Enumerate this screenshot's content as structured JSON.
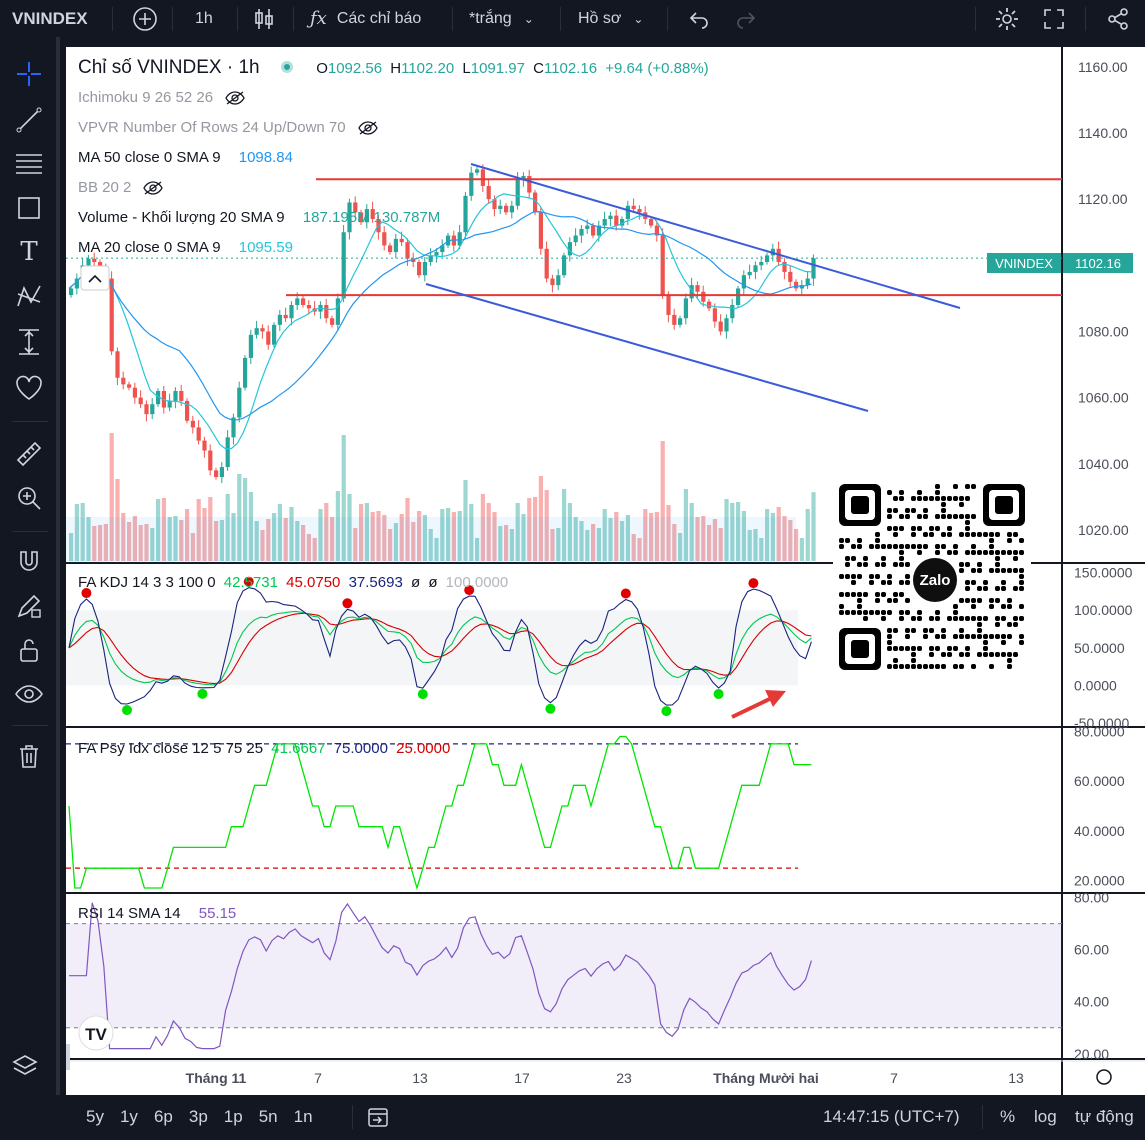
{
  "topbar": {
    "symbol": "VNINDEX",
    "interval": "1h",
    "indicators_label": "Các chỉ báo",
    "template_label": "*trắng",
    "profile_label": "Hồ sơ"
  },
  "legend": {
    "title": "Chỉ số VNINDEX · 1h",
    "o_label": "O",
    "o": "1092.56",
    "h_label": "H",
    "h": "1102.20",
    "l_label": "L",
    "l": "1091.97",
    "c_label": "C",
    "c": "1102.16",
    "change": "+9.64 (+0.88%)",
    "ichimoku": "Ichimoku 9 26 52 26",
    "vpvr": "VPVR Number Of Rows 24 Up/Down 70",
    "ma50": "MA 50 close 0 SMA 9",
    "ma50_val": "1098.84",
    "bb": "BB 20 2",
    "volume": "Volume - Khối lượng 20 SMA 9",
    "vol_val1": "187.195M",
    "vol_val2": "130.787M",
    "ma20": "MA 20 close 0 SMA 9",
    "ma20_val": "1095.59"
  },
  "price_tag": {
    "symbol": "VNINDEX",
    "value": "1102.16"
  },
  "kdj": {
    "label": "FA KDJ 14 3 3 100 0",
    "k": "42.5731",
    "d": "45.0750",
    "j": "37.5693",
    "e1": "ø",
    "e2": "ø",
    "e3": "100.0000"
  },
  "psy": {
    "label": "FA Psy Idx close 12 5 75 25",
    "v": "41.6667",
    "hi": "75.0000",
    "lo": "25.0000"
  },
  "rsi": {
    "label": "RSI 14 SMA 14",
    "v": "55.15"
  },
  "price_axis": [
    "1160.00",
    "1140.00",
    "1120.00",
    "1100.00",
    "1080.00",
    "1060.00",
    "1040.00",
    "1020.00"
  ],
  "kdj_axis": [
    "150.0000",
    "100.0000",
    "50.0000",
    "0.0000",
    "-50.0000"
  ],
  "psy_axis": [
    "80.0000",
    "60.0000",
    "40.0000",
    "20.0000"
  ],
  "rsi_axis": [
    "80.00",
    "60.00",
    "40.00",
    "20.00"
  ],
  "time_axis": [
    "Tháng 11",
    "7",
    "13",
    "17",
    "23",
    "Tháng Mười hai",
    "7",
    "13"
  ],
  "qr_label": "Zalo",
  "bottom": {
    "ranges": [
      "5y",
      "1y",
      "6p",
      "3p",
      "1p",
      "5n",
      "1n"
    ],
    "clock": "14:47:15 (UTC+7)",
    "pct": "%",
    "log": "log",
    "auto": "tự động"
  },
  "colors": {
    "up": "#26a69a",
    "down": "#ef5350",
    "trend": "#3b5bdb",
    "level": "#e53935",
    "ma20": "#26c6da",
    "ma50": "#2196f3",
    "psy": "#00e600",
    "rsi": "#7e57c2"
  },
  "chart_data": [
    {
      "type": "candlestick",
      "title": "Chỉ số VNINDEX · 1h",
      "y_range": [
        1010,
        1166
      ],
      "close_path": [
        1093,
        1096,
        1100,
        1102,
        1101,
        1099,
        1096,
        1074,
        1066,
        1064,
        1063,
        1060,
        1058,
        1055,
        1058,
        1062,
        1057,
        1059,
        1062,
        1059,
        1053,
        1051,
        1047,
        1044,
        1038,
        1036,
        1039,
        1048,
        1054,
        1063,
        1072,
        1079,
        1081,
        1080,
        1076,
        1082,
        1085,
        1084,
        1088,
        1090,
        1088,
        1087,
        1086,
        1088,
        1084,
        1082,
        1090,
        1110,
        1119,
        1116,
        1113,
        1117,
        1114,
        1110,
        1106,
        1104,
        1108,
        1107,
        1102,
        1101,
        1097,
        1101,
        1103,
        1104,
        1106,
        1109,
        1106,
        1110,
        1121,
        1128,
        1129,
        1124,
        1120,
        1117,
        1118,
        1116,
        1118,
        1126,
        1127,
        1122,
        1116,
        1105,
        1096,
        1094,
        1097,
        1103,
        1107,
        1109,
        1111,
        1112,
        1109,
        1112,
        1114,
        1115,
        1112,
        1114,
        1118,
        1117,
        1116,
        1114,
        1112,
        1109,
        1091,
        1085,
        1082,
        1084,
        1090,
        1094,
        1092,
        1089,
        1087,
        1083,
        1080,
        1084,
        1088,
        1093,
        1097,
        1098,
        1100,
        1101,
        1103,
        1105,
        1101,
        1098,
        1095,
        1093,
        1094,
        1096,
        1102.16
      ],
      "trend_lines": [
        {
          "from": [
            1,
            1130
          ],
          "to": [
            6,
            1089
          ]
        },
        {
          "from": [
            1,
            1092
          ],
          "to": [
            6,
            1057
          ]
        }
      ],
      "levels": [
        1126,
        1091
      ],
      "last": 1102.16
    },
    {
      "type": "bar",
      "name": "Volume",
      "note": "volume bars under price"
    },
    {
      "type": "line",
      "name": "FA KDJ",
      "y_range": [
        -50,
        150
      ],
      "last": {
        "K": 42.5731,
        "D": 45.075,
        "J": 37.5693
      }
    },
    {
      "type": "line",
      "name": "FA Psy Idx",
      "y_range": [
        15,
        80
      ],
      "levels": [
        75,
        25
      ],
      "last": 41.6667
    },
    {
      "type": "line",
      "name": "RSI",
      "y_range": [
        20,
        80
      ],
      "levels": [
        70,
        30
      ],
      "last": 55.15
    }
  ]
}
